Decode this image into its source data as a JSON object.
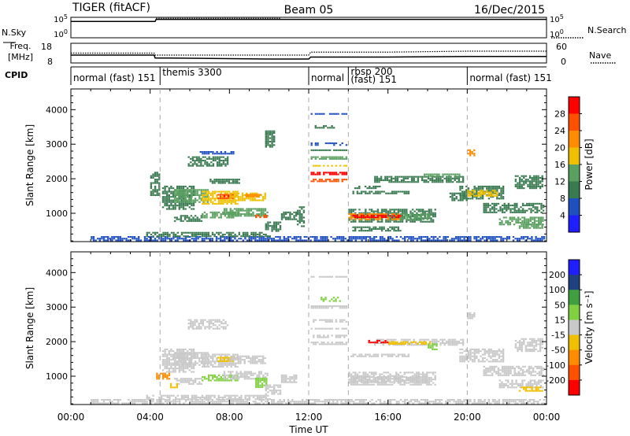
{
  "header": {
    "radar": "TIGER (fitACF)",
    "beam": "Beam 05",
    "date": "16/Dec/2015"
  },
  "labels": {
    "nsky": "N.Sky",
    "freq_line1": "Freq.",
    "freq_line2": "[MHz]",
    "cpid": "CPID",
    "nsearch": "N.Search",
    "nave": "Nave",
    "time_axis": "Time UT"
  },
  "colors": {
    "missing": "#c8c8c8",
    "power_scale": [
      "#1e1eff",
      "#2050c0",
      "#3a7a50",
      "#5aa060",
      "#f0c000",
      "#ff8c00",
      "#ff5000",
      "#ff0000"
    ],
    "velocity_scale": [
      "#1e1eff",
      "#204080",
      "#40a040",
      "#80d040",
      "#c8c8c8",
      "#f0c000",
      "#ff8c00",
      "#ff5000",
      "#ff0000"
    ]
  },
  "chart_data": [
    {
      "id": "nsky_nsearch",
      "type": "line",
      "ylabel": "N.Sky",
      "y_ticks": [
        "10^5",
        "10^0"
      ],
      "y2_ticks": [
        "10^5",
        "10^0"
      ],
      "y2label": "N.Search",
      "x_range_hours": [
        0,
        24
      ],
      "series": [
        {
          "style": "solid",
          "x": [
            0,
            4.25,
            4.3,
            8,
            12,
            16,
            20,
            24
          ],
          "y": [
            0.8,
            0.8,
            0.9,
            0.9,
            0.9,
            0.9,
            0.9,
            0.9
          ]
        },
        {
          "style": "dotted",
          "x": [
            4.3,
            6,
            8,
            10.6
          ],
          "y": [
            0.95,
            0.95,
            0.95,
            0.95
          ]
        }
      ]
    },
    {
      "id": "freq_nave",
      "type": "line",
      "ylabel": "Freq. [MHz]",
      "ylim": [
        8,
        18
      ],
      "y_ticks": [
        "18",
        "8"
      ],
      "y2lim": [
        0,
        60
      ],
      "y2_ticks": [
        "60",
        "0"
      ],
      "y2label": "Nave",
      "x_range_hours": [
        0,
        24
      ],
      "series": [
        {
          "style": "solid",
          "x": [
            0,
            4.2,
            4.25,
            5,
            9.9,
            10,
            12,
            12.1,
            16,
            20,
            24
          ],
          "y": [
            12,
            12,
            10.5,
            10.5,
            10,
            10,
            10,
            11,
            11,
            11.3,
            11.3
          ]
        },
        {
          "style": "dotted",
          "x": [
            0,
            4.2,
            4.25,
            5,
            10,
            12,
            12.1,
            16,
            20,
            24
          ],
          "y": [
            13,
            13,
            12,
            12,
            12,
            12,
            13.5,
            13.5,
            14,
            14
          ]
        }
      ]
    },
    {
      "id": "cpid",
      "type": "table",
      "x_range_hours": [
        0,
        24
      ],
      "segments": [
        {
          "start": 0,
          "end": 4.5,
          "label": "normal (fast) 151"
        },
        {
          "start": 4.5,
          "end": 12.0,
          "label": "themis 3300"
        },
        {
          "start": 12.0,
          "end": 14.0,
          "label": "normal"
        },
        {
          "start": 14.0,
          "end": 20.0,
          "label": "rbsp 200"
        },
        {
          "start": 14.0,
          "end": 20.0,
          "label": "(fast) 151"
        },
        {
          "start": 20.0,
          "end": 24.0,
          "label": "normal (fast) 151"
        }
      ]
    },
    {
      "id": "power",
      "type": "heatmap",
      "xlabel": "",
      "ylabel": "Slant Range [km]",
      "ylim": [
        180,
        4600
      ],
      "y_ticks": [
        1000,
        2000,
        3000,
        4000
      ],
      "colorbar_label": "Power [dB]",
      "colorbar_ticks": [
        4,
        8,
        12,
        16,
        20,
        24,
        28
      ],
      "colorbar_range": [
        0,
        32
      ],
      "gate_km": 55,
      "cells": [
        [
          4.6,
          6.2,
          1100,
          1800,
          9
        ],
        [
          5.2,
          6.9,
          1300,
          1700,
          14
        ],
        [
          6.6,
          8.4,
          1250,
          1650,
          19
        ],
        [
          7.4,
          8.2,
          1450,
          1560,
          24
        ],
        [
          7.7,
          8.0,
          1480,
          1520,
          28
        ],
        [
          5.9,
          7.9,
          2350,
          2650,
          8
        ],
        [
          5.2,
          6.6,
          750,
          950,
          9
        ],
        [
          6.6,
          8.4,
          860,
          1050,
          12
        ],
        [
          8.0,
          9.8,
          1350,
          1600,
          18
        ],
        [
          8.8,
          9.6,
          1500,
          1560,
          23
        ],
        [
          7.7,
          9.9,
          920,
          1150,
          14
        ],
        [
          9.3,
          9.9,
          880,
          960,
          25
        ],
        [
          7.0,
          8.5,
          1880,
          2000,
          8
        ],
        [
          9.8,
          10.3,
          2900,
          3400,
          8
        ],
        [
          11.4,
          11.8,
          600,
          1200,
          8
        ],
        [
          4.0,
          4.5,
          1500,
          2200,
          8
        ],
        [
          6.5,
          8.2,
          2700,
          2800,
          6
        ],
        [
          12.1,
          13.9,
          3850,
          3900,
          6
        ],
        [
          12.1,
          13.9,
          2950,
          3050,
          6
        ],
        [
          12.1,
          13.9,
          2550,
          2650,
          12
        ],
        [
          12.1,
          13.9,
          2100,
          2200,
          29
        ],
        [
          12.1,
          13.9,
          1920,
          2000,
          26
        ],
        [
          12.1,
          13.9,
          2350,
          2400,
          18
        ],
        [
          12.1,
          13.9,
          2800,
          2850,
          9
        ],
        [
          12.3,
          13.3,
          3450,
          3550,
          8
        ],
        [
          14.0,
          18.4,
          760,
          1130,
          11
        ],
        [
          14.0,
          16.6,
          820,
          1000,
          20
        ],
        [
          14.2,
          16.6,
          860,
          960,
          28
        ],
        [
          16.6,
          18.1,
          820,
          1000,
          14
        ],
        [
          14.1,
          17.0,
          1550,
          1650,
          10
        ],
        [
          14.3,
          15.6,
          1720,
          1800,
          8
        ],
        [
          15.3,
          19.8,
          1920,
          2080,
          11
        ],
        [
          17.8,
          19.6,
          2050,
          2150,
          14
        ],
        [
          19.6,
          21.8,
          1400,
          1800,
          11
        ],
        [
          20.0,
          21.6,
          1500,
          1680,
          16
        ],
        [
          20.8,
          23.8,
          1000,
          1300,
          11
        ],
        [
          21.6,
          23.8,
          650,
          900,
          12
        ],
        [
          22.6,
          23.8,
          560,
          700,
          15
        ],
        [
          22.4,
          23.8,
          1700,
          2100,
          8
        ],
        [
          19.1,
          20.0,
          1350,
          1600,
          9
        ],
        [
          20.0,
          20.4,
          2650,
          2850,
          20
        ],
        [
          14.2,
          16.6,
          480,
          620,
          8
        ],
        [
          1.0,
          23.9,
          180,
          340,
          5
        ],
        [
          3.8,
          10.0,
          340,
          460,
          9
        ],
        [
          9.8,
          10.6,
          500,
          760,
          11
        ],
        [
          10.6,
          11.4,
          800,
          1050,
          8
        ]
      ]
    },
    {
      "id": "velocity",
      "type": "heatmap",
      "xlabel": "Time UT",
      "ylabel": "Slant Range [km]",
      "ylim": [
        180,
        4600
      ],
      "y_ticks": [
        1000,
        2000,
        3000,
        4000
      ],
      "x_ticks": [
        "00:00",
        "04:00",
        "08:00",
        "12:00",
        "16:00",
        "20:00",
        "00:00"
      ],
      "colorbar_label": "Velocity [m s⁻¹]",
      "colorbar_ticks": [
        200,
        100,
        50,
        15,
        -15,
        -50,
        -100,
        -200
      ],
      "colorbar_range": [
        -250,
        250
      ],
      "gate_km": 55,
      "cells": [
        [
          4.6,
          6.2,
          1100,
          1800,
          0
        ],
        [
          5.2,
          6.9,
          1300,
          1700,
          0
        ],
        [
          6.6,
          8.4,
          1250,
          1650,
          0
        ],
        [
          7.4,
          8.2,
          1450,
          1560,
          -20
        ],
        [
          5.9,
          7.9,
          2350,
          2650,
          0
        ],
        [
          5.2,
          6.6,
          750,
          950,
          0
        ],
        [
          6.6,
          8.4,
          860,
          1050,
          30
        ],
        [
          8.0,
          9.8,
          1350,
          1600,
          0
        ],
        [
          7.7,
          9.9,
          920,
          1150,
          0
        ],
        [
          9.3,
          9.9,
          700,
          960,
          30
        ],
        [
          4.3,
          5.0,
          900,
          1100,
          -60
        ],
        [
          5.0,
          5.4,
          650,
          800,
          -30
        ],
        [
          12.1,
          13.9,
          3850,
          3900,
          0
        ],
        [
          12.1,
          13.9,
          2950,
          3050,
          0
        ],
        [
          12.1,
          13.9,
          2550,
          2650,
          0
        ],
        [
          12.1,
          13.9,
          2100,
          2200,
          0
        ],
        [
          12.1,
          13.9,
          2350,
          2400,
          0
        ],
        [
          12.1,
          13.9,
          1920,
          2000,
          0
        ],
        [
          12.6,
          13.6,
          3150,
          3300,
          30
        ],
        [
          14.0,
          18.4,
          760,
          1130,
          0
        ],
        [
          14.2,
          18.0,
          820,
          1000,
          0
        ],
        [
          14.1,
          17.0,
          1550,
          1650,
          0
        ],
        [
          15.3,
          19.8,
          1920,
          2080,
          0
        ],
        [
          16.0,
          18.2,
          1930,
          2010,
          -30
        ],
        [
          15.0,
          16.0,
          1950,
          2050,
          -220
        ],
        [
          18.0,
          18.5,
          1750,
          1950,
          40
        ],
        [
          19.6,
          21.8,
          1400,
          1800,
          0
        ],
        [
          20.8,
          23.8,
          1000,
          1300,
          0
        ],
        [
          21.6,
          23.8,
          650,
          900,
          0
        ],
        [
          22.6,
          23.8,
          560,
          700,
          -30
        ],
        [
          22.4,
          23.8,
          1700,
          2100,
          0
        ],
        [
          20.0,
          20.4,
          2650,
          2850,
          0
        ],
        [
          1.0,
          23.9,
          180,
          340,
          0
        ],
        [
          3.8,
          10.0,
          340,
          460,
          0
        ],
        [
          9.8,
          10.6,
          500,
          760,
          0
        ],
        [
          10.6,
          11.4,
          800,
          1050,
          0
        ]
      ]
    }
  ]
}
